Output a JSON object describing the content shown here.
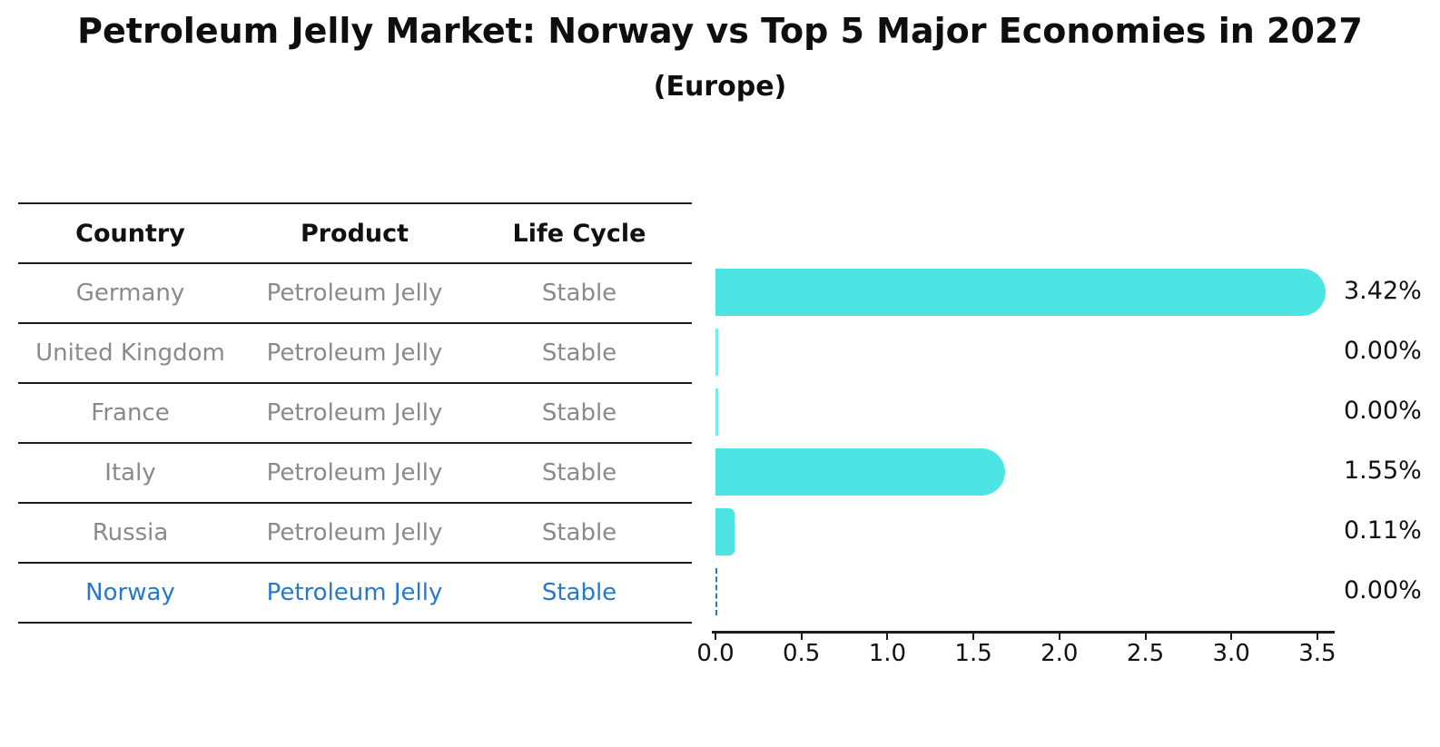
{
  "title": "Petroleum Jelly Market: Norway vs Top 5 Major Economies in 2027",
  "subtitle": "(Europe)",
  "table": {
    "headers": [
      "Country",
      "Product",
      "Life Cycle"
    ],
    "rows": [
      {
        "country": "Germany",
        "product": "Petroleum Jelly",
        "life_cycle": "Stable",
        "highlight": false
      },
      {
        "country": "United Kingdom",
        "product": "Petroleum Jelly",
        "life_cycle": "Stable",
        "highlight": false
      },
      {
        "country": "France",
        "product": "Petroleum Jelly",
        "life_cycle": "Stable",
        "highlight": false
      },
      {
        "country": "Italy",
        "product": "Petroleum Jelly",
        "life_cycle": "Stable",
        "highlight": false
      },
      {
        "country": "Russia",
        "product": "Petroleum Jelly",
        "life_cycle": "Stable",
        "highlight": false
      },
      {
        "country": "Norway",
        "product": "Petroleum Jelly",
        "life_cycle": "Stable",
        "highlight": true
      }
    ]
  },
  "chart_data": {
    "type": "bar",
    "orientation": "horizontal",
    "title": "Petroleum Jelly Market: Norway vs Top 5 Major Economies in 2027",
    "subtitle": "(Europe)",
    "categories": [
      "Germany",
      "United Kingdom",
      "France",
      "Italy",
      "Russia",
      "Norway"
    ],
    "values": [
      3.42,
      0.0,
      0.0,
      1.55,
      0.11,
      0.0
    ],
    "value_labels": [
      "3.42%",
      "0.00%",
      "0.00%",
      "1.55%",
      "0.11%",
      "0.00%"
    ],
    "x_tick_labels": [
      "0.0",
      "0.5",
      "1.0",
      "1.5",
      "2.0",
      "2.5",
      "3.0",
      "3.5"
    ],
    "xlim": [
      0,
      3.6
    ],
    "grid": false,
    "legend": "none",
    "bar_color": "#4de4e4",
    "highlight_outline_color": "#2878c8",
    "value_label_color": "#111111",
    "table_text_color": "#8a8a8a"
  }
}
